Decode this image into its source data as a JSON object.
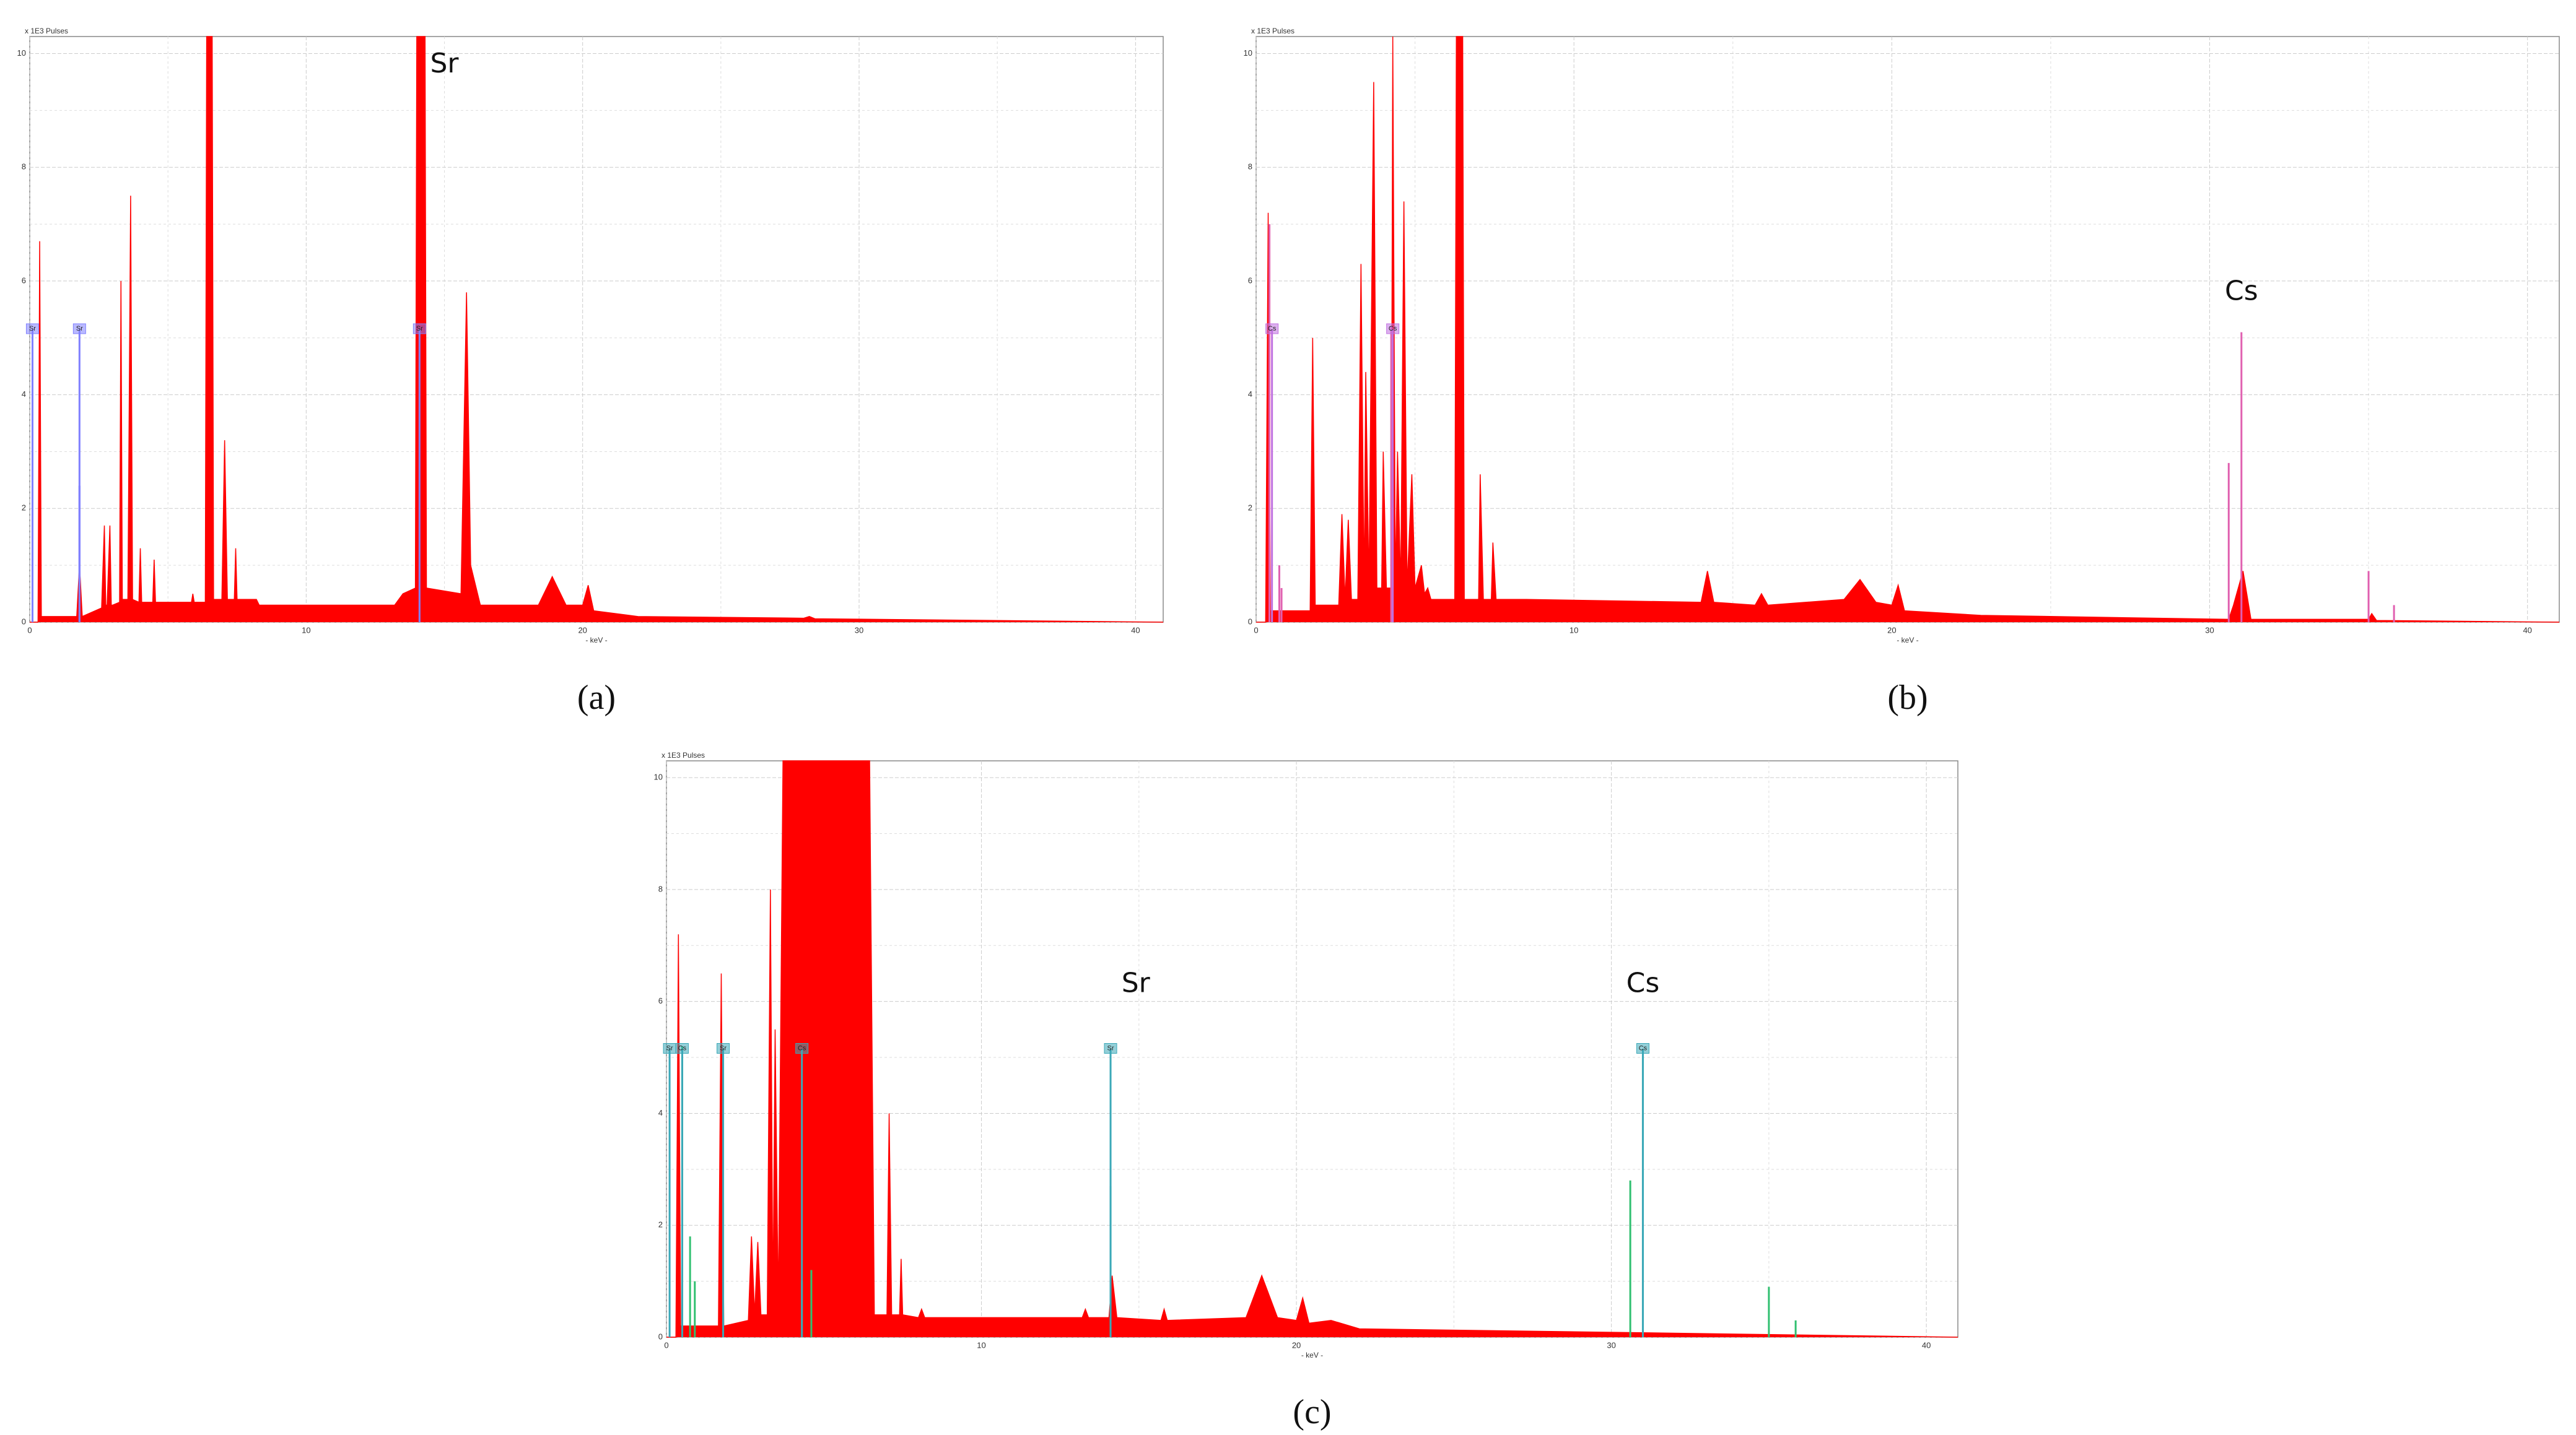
{
  "chart_data": [
    {
      "type": "area",
      "caption": "(a)",
      "y_label": "x 1E3 Pulses",
      "x_label": "- keV -",
      "xlim": [
        0,
        41
      ],
      "ylim": [
        0,
        10.3
      ],
      "xticks": [
        0,
        10,
        20,
        30,
        40
      ],
      "yticks": [
        0,
        2,
        4,
        6,
        8,
        10
      ],
      "grid": true,
      "series": [
        {
          "style": "area",
          "color": "#ff0000",
          "x": [
            0,
            0.3,
            0.36,
            0.42,
            1.0,
            1.7,
            1.8,
            1.9,
            2.6,
            2.7,
            2.75,
            2.8,
            2.9,
            2.95,
            3.0,
            3.25,
            3.3,
            3.35,
            3.55,
            3.65,
            3.72,
            3.95,
            4.0,
            4.05,
            4.45,
            4.5,
            4.55,
            5.85,
            5.9,
            5.95,
            6.35,
            6.4,
            6.6,
            6.65,
            6.95,
            7.05,
            7.15,
            7.4,
            7.45,
            7.5,
            8.2,
            8.3,
            13.2,
            13.5,
            13.95,
            14.0,
            14.3,
            14.35,
            15.6,
            15.8,
            15.95,
            16.3,
            18.4,
            18.9,
            19.4,
            20.0,
            20.2,
            20.4,
            22.0,
            28.0,
            28.2,
            28.4,
            41.0
          ],
          "values": [
            0,
            0,
            6.7,
            0.1,
            0.1,
            0.1,
            1.0,
            0.1,
            0.25,
            1.7,
            0.3,
            0.3,
            1.7,
            0.3,
            0.3,
            0.35,
            6.0,
            0.4,
            0.4,
            7.5,
            0.4,
            0.35,
            1.3,
            0.35,
            0.35,
            1.1,
            0.35,
            0.35,
            0.5,
            0.35,
            0.35,
            10.3,
            10.3,
            0.4,
            0.4,
            3.2,
            0.4,
            0.4,
            1.3,
            0.4,
            0.4,
            0.3,
            0.3,
            0.5,
            0.6,
            10.3,
            10.3,
            0.6,
            0.5,
            5.8,
            1.0,
            0.3,
            0.3,
            0.8,
            0.3,
            0.3,
            0.65,
            0.2,
            0.1,
            0.07,
            0.1,
            0.06,
            0
          ]
        },
        {
          "style": "stem",
          "color": "#3b3bff",
          "x": [
            1.8
          ],
          "values": [
            2.4
          ]
        }
      ],
      "marker_color": "#8080ff",
      "markers": [
        {
          "label": "Sr",
          "x": 0.1
        },
        {
          "label": "Sr",
          "x": 1.8
        },
        {
          "label": "Sr",
          "x": 14.1
        }
      ],
      "annotations": [
        {
          "text": "Sr",
          "x": 15.0,
          "y": 9.8
        }
      ]
    },
    {
      "type": "area",
      "caption": "(b)",
      "y_label": "x 1E3 Pulses",
      "x_label": "- keV -",
      "xlim": [
        0,
        41
      ],
      "ylim": [
        0,
        10.3
      ],
      "xticks": [
        0,
        10,
        20,
        30,
        40
      ],
      "yticks": [
        0,
        2,
        4,
        6,
        8,
        10
      ],
      "grid": true,
      "series": [
        {
          "style": "area",
          "color": "#ff0000",
          "x": [
            0,
            0.3,
            0.38,
            0.45,
            1.0,
            1.7,
            1.78,
            1.86,
            2.6,
            2.7,
            2.8,
            2.9,
            3.0,
            3.2,
            3.3,
            3.4,
            3.45,
            3.55,
            3.7,
            3.8,
            3.95,
            4.0,
            4.1,
            4.25,
            4.3,
            4.38,
            4.45,
            4.55,
            4.65,
            4.75,
            4.9,
            5.0,
            5.2,
            5.3,
            5.4,
            5.5,
            6.25,
            6.3,
            6.5,
            6.55,
            7.0,
            7.05,
            7.15,
            7.4,
            7.45,
            7.55,
            8.5,
            14.0,
            14.2,
            14.4,
            15.7,
            15.9,
            16.1,
            18.5,
            19.0,
            19.5,
            20.0,
            20.2,
            20.4,
            22.8,
            30.6,
            30.75,
            31.05,
            31.3,
            35.0,
            35.1,
            35.25,
            41.0
          ],
          "values": [
            0,
            0,
            7.2,
            0.2,
            0.2,
            0.2,
            5.0,
            0.3,
            0.3,
            1.9,
            0.4,
            1.8,
            0.4,
            0.4,
            6.3,
            0.5,
            4.4,
            0.6,
            9.5,
            0.6,
            0.6,
            3.0,
            0.6,
            0.6,
            10.3,
            0.6,
            3.0,
            0.6,
            7.4,
            0.6,
            2.6,
            0.6,
            1.0,
            0.5,
            0.6,
            0.4,
            0.4,
            10.3,
            10.3,
            0.4,
            0.4,
            2.6,
            0.4,
            0.4,
            1.4,
            0.4,
            0.4,
            0.35,
            0.9,
            0.35,
            0.3,
            0.5,
            0.3,
            0.4,
            0.75,
            0.35,
            0.3,
            0.65,
            0.2,
            0.12,
            0.05,
            0.3,
            0.9,
            0.05,
            0.05,
            0.15,
            0.03,
            0
          ]
        },
        {
          "style": "stem",
          "color": "#e060b0",
          "x": [
            0.42,
            0.73,
            0.8,
            4.25,
            30.6,
            31.0,
            35.0,
            35.8
          ],
          "values": [
            7.0,
            1.0,
            0.6,
            5.2,
            2.8,
            5.1,
            0.9,
            0.3
          ]
        }
      ],
      "marker_color": "#c070e0",
      "markers": [
        {
          "label": "Cs",
          "x": 0.5
        },
        {
          "label": "Cs",
          "x": 4.3
        }
      ],
      "annotations": [
        {
          "text": "Cs",
          "x": 31.0,
          "y": 5.8
        }
      ]
    },
    {
      "type": "area",
      "caption": "(c)",
      "y_label": "x 1E3 Pulses",
      "x_label": "- keV -",
      "xlim": [
        0,
        41
      ],
      "ylim": [
        0,
        10.3
      ],
      "xticks": [
        0,
        10,
        20,
        30,
        40
      ],
      "yticks": [
        0,
        2,
        4,
        6,
        8,
        10
      ],
      "grid": true,
      "series": [
        {
          "style": "area",
          "color": "#ff0000",
          "x": [
            0,
            0.3,
            0.38,
            0.45,
            1.0,
            1.65,
            1.74,
            1.82,
            2.6,
            2.7,
            2.8,
            2.9,
            3.0,
            3.2,
            3.3,
            3.38,
            3.45,
            3.55,
            3.7,
            6.45,
            6.6,
            7.0,
            7.07,
            7.15,
            7.4,
            7.45,
            7.5,
            8.0,
            8.1,
            8.2,
            13.2,
            13.3,
            13.4,
            14.05,
            14.15,
            14.3,
            15.7,
            15.8,
            15.9,
            18.4,
            18.9,
            19.4,
            20.0,
            20.2,
            20.4,
            21.1,
            22.0,
            30.9,
            41.0
          ],
          "values": [
            0,
            0,
            7.2,
            0.2,
            0.2,
            0.2,
            6.5,
            0.2,
            0.3,
            1.8,
            0.4,
            1.7,
            0.4,
            0.4,
            8.0,
            0.5,
            5.5,
            0.5,
            10.3,
            10.3,
            0.4,
            0.4,
            4.0,
            0.4,
            0.4,
            1.4,
            0.4,
            0.35,
            0.5,
            0.35,
            0.35,
            0.5,
            0.35,
            0.35,
            1.1,
            0.35,
            0.3,
            0.5,
            0.3,
            0.35,
            1.1,
            0.35,
            0.3,
            0.7,
            0.25,
            0.3,
            0.15,
            0.08,
            0
          ]
        },
        {
          "style": "stem",
          "color": "#30c070",
          "x": [
            0.5,
            0.75,
            0.9,
            1.8,
            4.3,
            4.6,
            14.1,
            30.6,
            31.0,
            35.0,
            35.85
          ],
          "values": [
            5.2,
            1.8,
            1.0,
            2.4,
            1.0,
            1.2,
            2.7,
            2.8,
            5.1,
            0.9,
            0.3
          ]
        }
      ],
      "marker_color": "#3aa8b8",
      "markers": [
        {
          "label": "Sr",
          "x": 0.1
        },
        {
          "label": "Cs",
          "x": 0.5
        },
        {
          "label": "Sr",
          "x": 1.8
        },
        {
          "label": "Cs",
          "x": 4.3
        },
        {
          "label": "Sr",
          "x": 14.1
        },
        {
          "label": "Cs",
          "x": 31.0
        }
      ],
      "annotations": [
        {
          "text": "Sr",
          "x": 14.9,
          "y": 6.3
        },
        {
          "text": "Cs",
          "x": 31.0,
          "y": 6.3
        }
      ]
    }
  ]
}
